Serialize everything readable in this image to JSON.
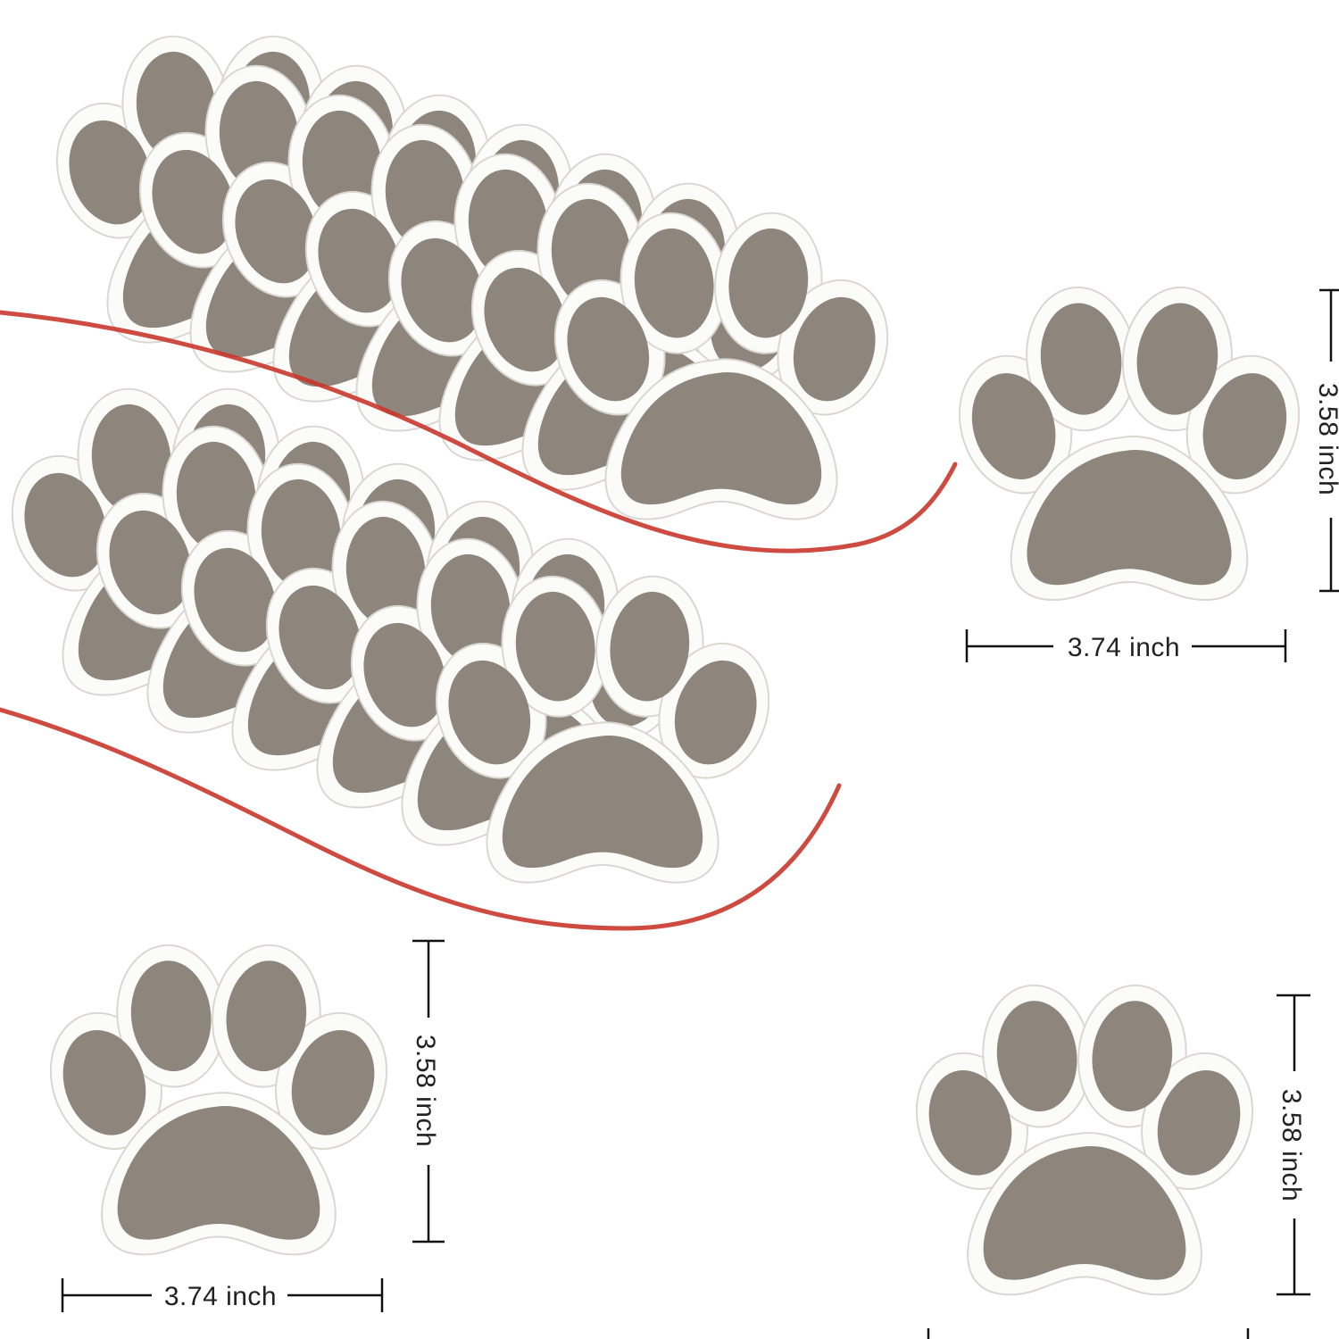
{
  "product": {
    "width_label": "3.74 inch",
    "height_label": "3.58 inch"
  },
  "colors": {
    "paw_fill": "#8e857c",
    "paw_border": "#fbfbfa",
    "paw_outline": "#d9d6d2",
    "accent_curve": "#c8372b",
    "dimension_line": "#111111",
    "background": "#ffffff"
  },
  "icons": {
    "sticker": "paw-print-icon"
  },
  "stacks": {
    "upper_count": 7,
    "lower_count": 6
  }
}
